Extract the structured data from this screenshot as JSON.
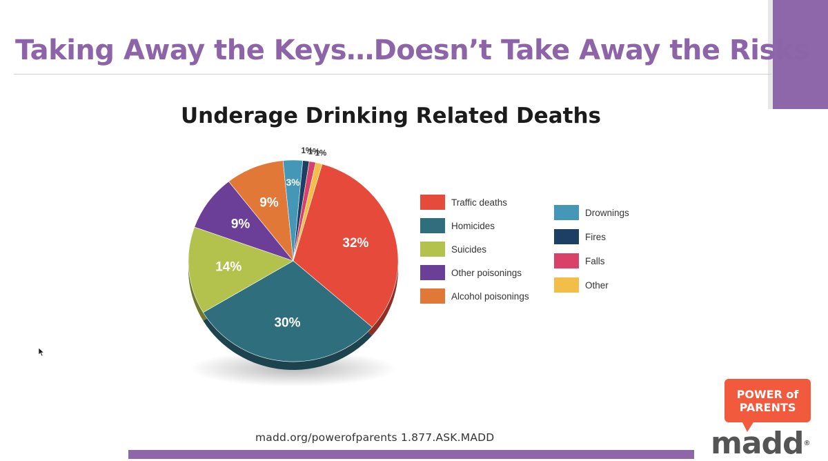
{
  "slide": {
    "title": "Taking Away the Keys…Doesn’t Take Away the Risks",
    "footer_text": "madd.org/powerofparents 1.877.ASK.MADD",
    "badge_lines": [
      "POWER of",
      "PARENTS"
    ],
    "logo_text": "madd",
    "logo_mark": "®",
    "accent_color": "#8d67a9"
  },
  "chart_data": {
    "type": "pie",
    "title": "Underage Drinking Related Deaths",
    "legend_placement": "right",
    "slices": [
      {
        "name": "Traffic deaths",
        "value": 32,
        "label": "32%",
        "color": "#e64a3a"
      },
      {
        "name": "Homicides",
        "value": 30,
        "label": "30%",
        "color": "#2f6e7d"
      },
      {
        "name": "Suicides",
        "value": 14,
        "label": "14%",
        "color": "#b3c24c"
      },
      {
        "name": "Other poisonings",
        "value": 9,
        "label": "9%",
        "color": "#6b3e97"
      },
      {
        "name": "Alcohol poisonings",
        "value": 9,
        "label": "9%",
        "color": "#e27837"
      },
      {
        "name": "Drownings",
        "value": 3,
        "label": "3%",
        "color": "#4597b7"
      },
      {
        "name": "Fires",
        "value": 1,
        "label": "1%",
        "color": "#1d3f63"
      },
      {
        "name": "Falls",
        "value": 1,
        "label": "1%",
        "color": "#d94168"
      },
      {
        "name": "Other",
        "value": 1,
        "label": "1%",
        "color": "#f3be48"
      }
    ]
  }
}
